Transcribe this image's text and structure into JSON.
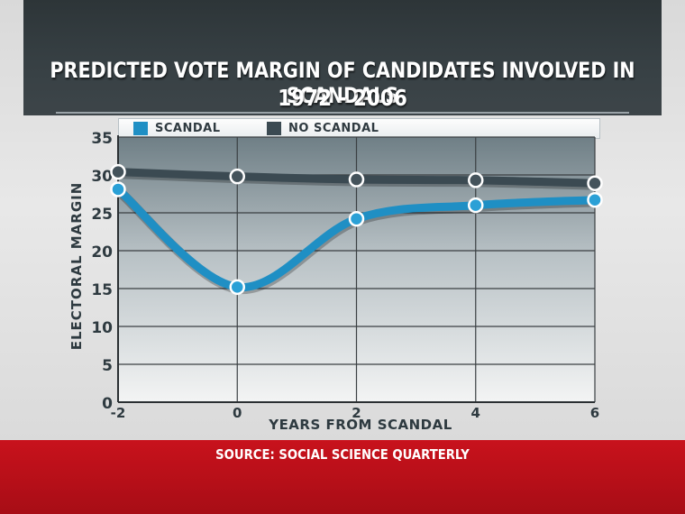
{
  "colors": {
    "scandal": "#1f8fc4",
    "no_scandal": "#3b4a52",
    "background_top": "#2d3538",
    "footer": "#c8121c"
  },
  "title_line1": "PREDICTED VOTE MARGIN OF CANDIDATES INVOLVED IN SCANDALS",
  "title_line2": "1972 - 2006",
  "source": "SOURCE: SOCIAL SCIENCE QUARTERLY",
  "chart_data": {
    "type": "line",
    "title": "PREDICTED VOTE MARGIN OF CANDIDATES INVOLVED IN SCANDALS",
    "subtitle": "1972 - 2006",
    "xlabel": "YEARS FROM SCANDAL",
    "ylabel": "ELECTORAL MARGIN",
    "x": [
      -2,
      0,
      2,
      4,
      6
    ],
    "x_tick_labels": [
      "-2",
      "0",
      "2",
      "4",
      "6"
    ],
    "y_tick_labels": [
      "0",
      "5",
      "10",
      "15",
      "20",
      "25",
      "30",
      "35"
    ],
    "xlim": [
      -2,
      6
    ],
    "ylim": [
      0,
      35
    ],
    "grid": true,
    "legend_position": "top",
    "series": [
      {
        "name": "SCANDAL",
        "values": [
          28.1,
          15.2,
          24.2,
          26.0,
          26.7
        ]
      },
      {
        "name": "NO SCANDAL",
        "values": [
          30.4,
          29.8,
          29.4,
          29.3,
          28.9
        ]
      }
    ]
  }
}
